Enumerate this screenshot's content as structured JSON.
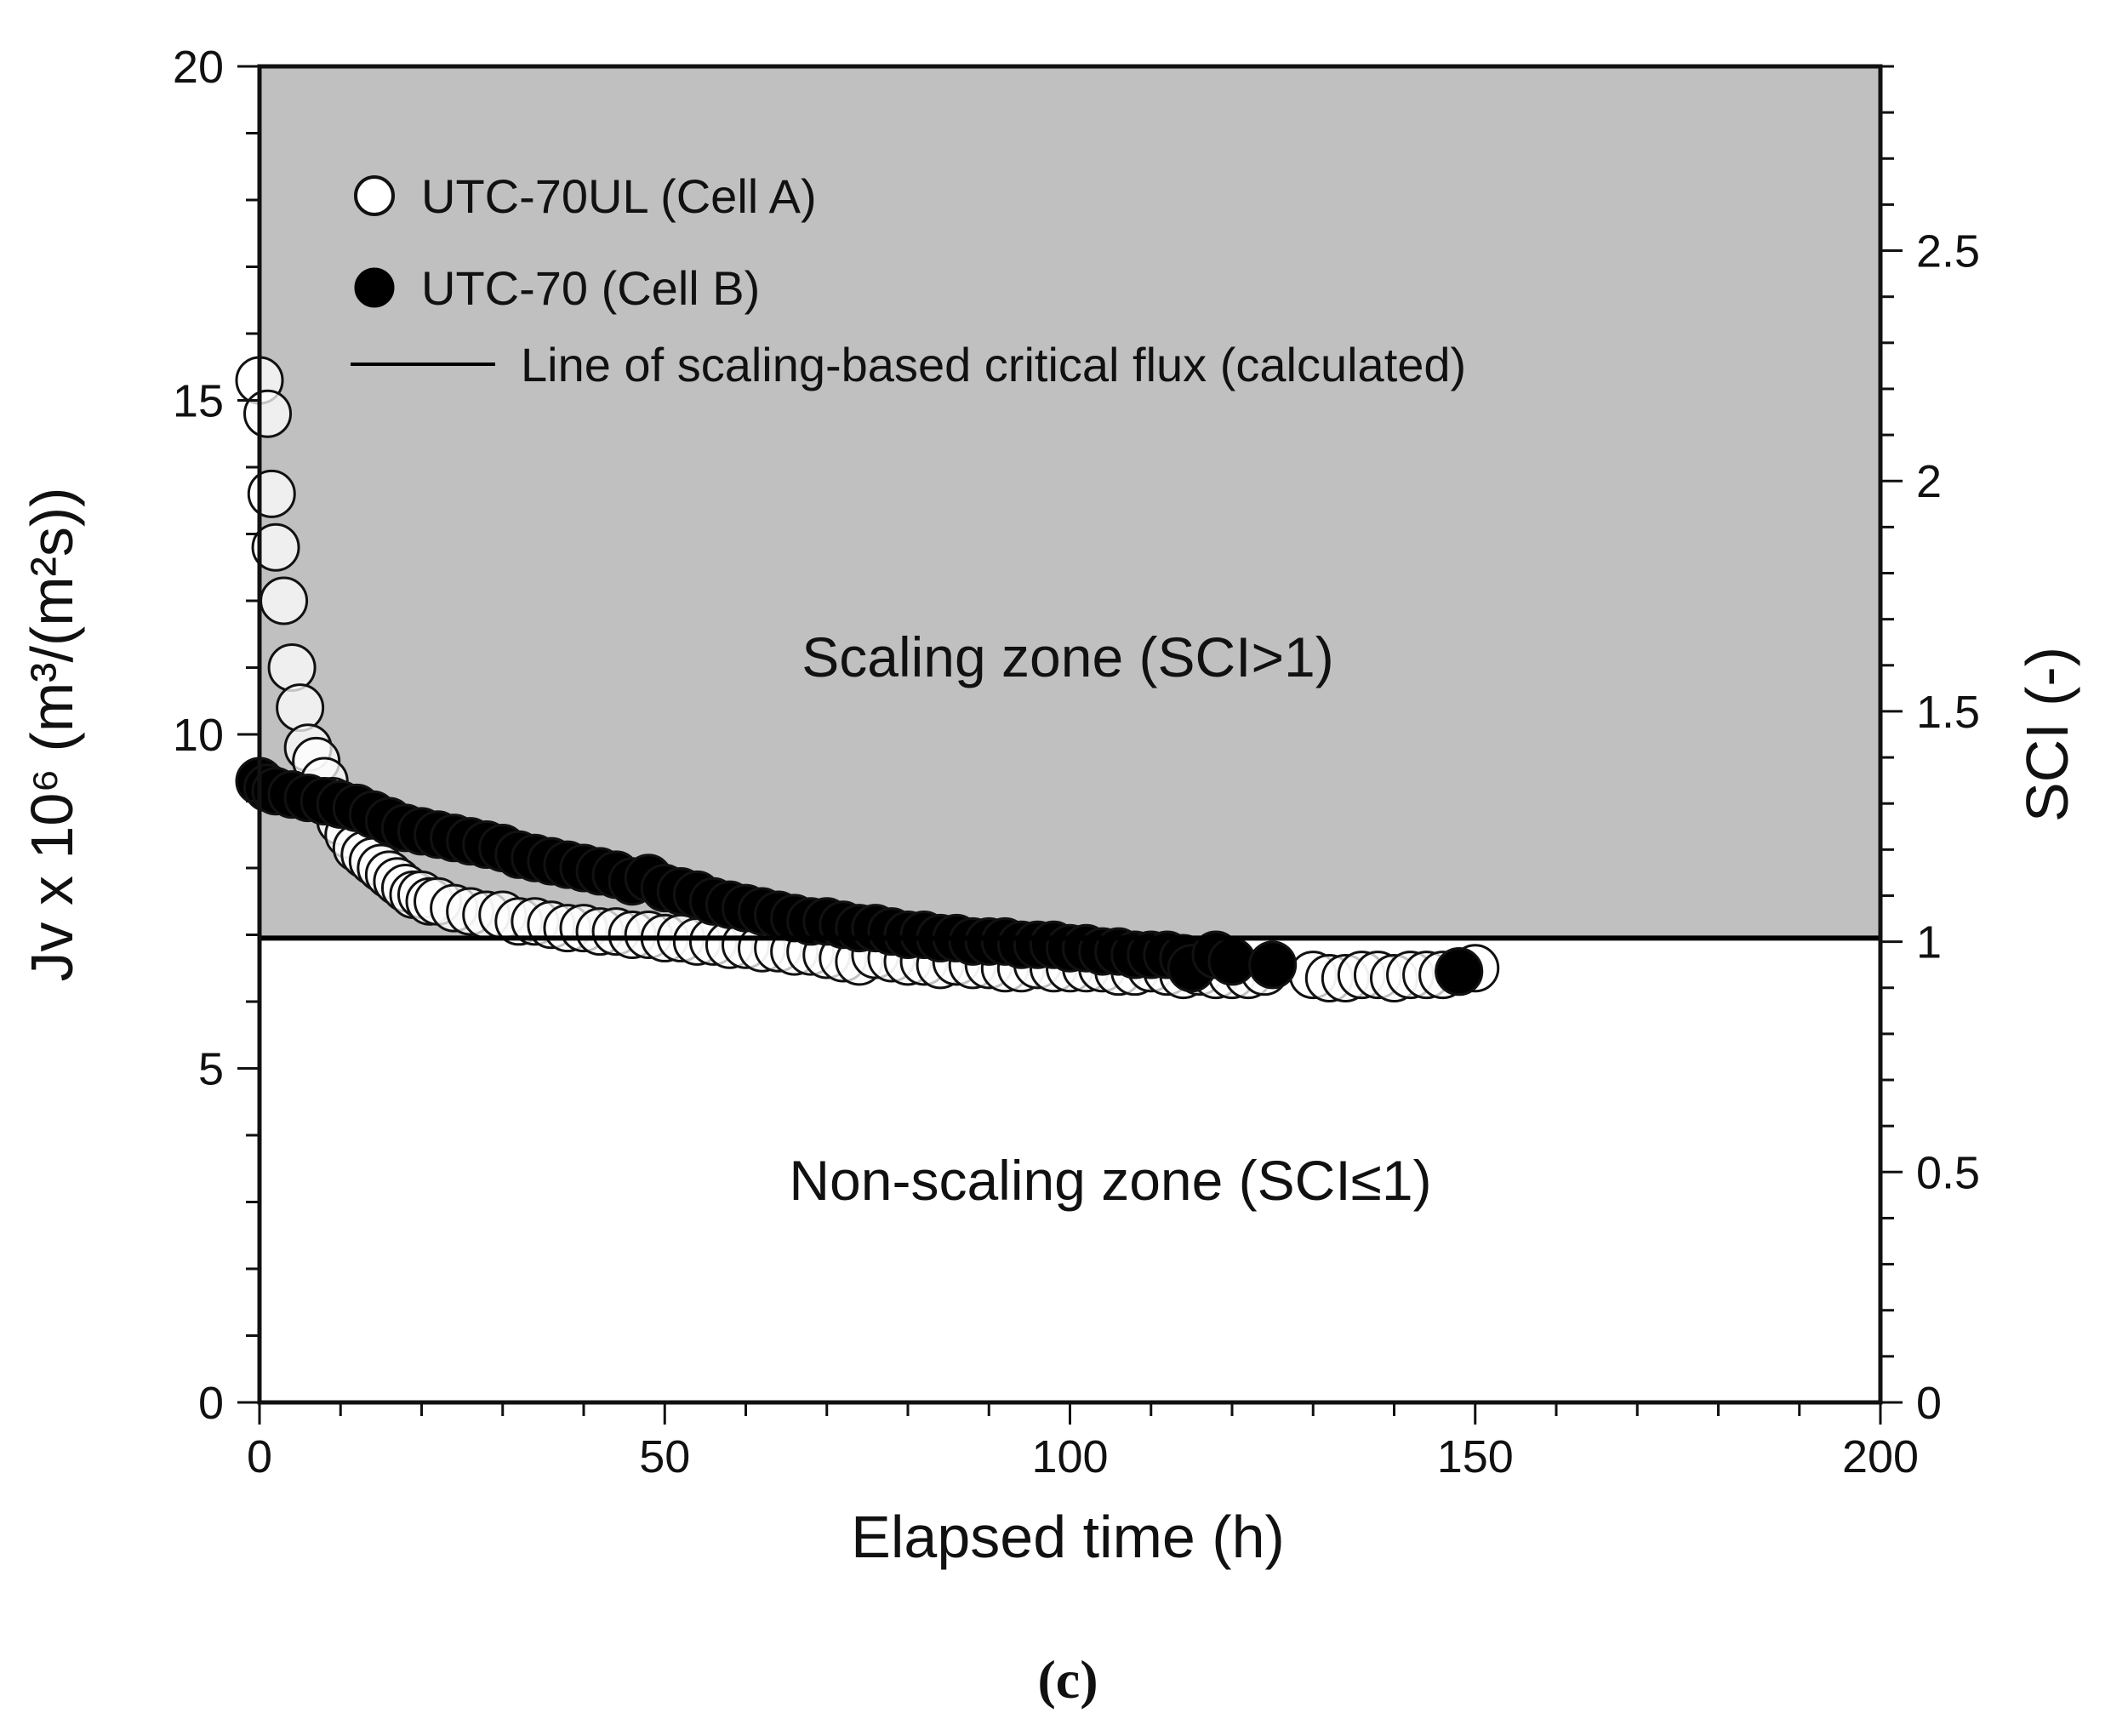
{
  "chart_data": {
    "type": "scatter",
    "panel_label": "(c)",
    "xlabel": "Elapsed time (h)",
    "ylabel": "Jv x 10⁶ (m³/(m²s))",
    "ylabel_right": "SCI (-)",
    "xlim": [
      0,
      200
    ],
    "ylim": [
      0,
      20
    ],
    "ylim_right": [
      0,
      2.9
    ],
    "x_ticks": [
      0,
      50,
      100,
      150,
      200
    ],
    "x_tick_labels": [
      "0",
      "50",
      "100",
      "150",
      "200"
    ],
    "y_ticks": [
      0,
      5,
      10,
      15,
      20
    ],
    "y_tick_labels": [
      "0",
      "5",
      "10",
      "15",
      "20"
    ],
    "y_right_ticks": [
      0,
      0.5,
      1,
      1.5,
      2,
      2.5
    ],
    "y_right_tick_labels": [
      "0",
      "0.5",
      "1",
      "1.5",
      "2",
      "2.5"
    ],
    "legend_position": "top-left",
    "critical_flux": 6.95,
    "zones": {
      "scaling": "Scaling zone (SCI>1)",
      "non_scaling": "Non-scaling zone (SCI≤1)"
    },
    "line_legend": "Line of scaling-based critical flux (calculated)",
    "colors": {
      "scaling_zone": "#c0c0c0",
      "open_marker_fill": "#ffffff",
      "filled_marker": "#000000",
      "line": "#000000"
    },
    "series": [
      {
        "name": "UTC-70UL (Cell A)",
        "marker": "open-circle",
        "points": [
          [
            0,
            15.3
          ],
          [
            1,
            14.8
          ],
          [
            1.5,
            13.6
          ],
          [
            2,
            12.8
          ],
          [
            3,
            12.0
          ],
          [
            4,
            11.0
          ],
          [
            5,
            10.4
          ],
          [
            6,
            9.8
          ],
          [
            7,
            9.6
          ],
          [
            8,
            9.3
          ],
          [
            9,
            9.0
          ],
          [
            10,
            8.7
          ],
          [
            11,
            8.5
          ],
          [
            12,
            8.3
          ],
          [
            13,
            8.2
          ],
          [
            14,
            8.1
          ],
          [
            15,
            8.0
          ],
          [
            16,
            7.9
          ],
          [
            17,
            7.8
          ],
          [
            18,
            7.7
          ],
          [
            19,
            7.6
          ],
          [
            20,
            7.6
          ],
          [
            21,
            7.5
          ],
          [
            22,
            7.5
          ],
          [
            24,
            7.4
          ],
          [
            26,
            7.35
          ],
          [
            28,
            7.3
          ],
          [
            30,
            7.3
          ],
          [
            32,
            7.2
          ],
          [
            34,
            7.2
          ],
          [
            36,
            7.15
          ],
          [
            38,
            7.1
          ],
          [
            40,
            7.1
          ],
          [
            42,
            7.05
          ],
          [
            44,
            7.05
          ],
          [
            46,
            7.0
          ],
          [
            48,
            7.0
          ],
          [
            50,
            6.95
          ],
          [
            52,
            6.95
          ],
          [
            54,
            6.9
          ],
          [
            56,
            6.9
          ],
          [
            58,
            6.85
          ],
          [
            60,
            6.85
          ],
          [
            62,
            6.8
          ],
          [
            64,
            6.8
          ],
          [
            66,
            6.75
          ],
          [
            68,
            6.75
          ],
          [
            70,
            6.7
          ],
          [
            72,
            6.65
          ],
          [
            74,
            6.6
          ],
          [
            76,
            6.7
          ],
          [
            78,
            6.65
          ],
          [
            80,
            6.6
          ],
          [
            82,
            6.6
          ],
          [
            84,
            6.55
          ],
          [
            86,
            6.6
          ],
          [
            88,
            6.55
          ],
          [
            90,
            6.55
          ],
          [
            92,
            6.5
          ],
          [
            94,
            6.5
          ],
          [
            96,
            6.55
          ],
          [
            98,
            6.5
          ],
          [
            100,
            6.5
          ],
          [
            102,
            6.5
          ],
          [
            104,
            6.5
          ],
          [
            106,
            6.45
          ],
          [
            108,
            6.45
          ],
          [
            110,
            6.5
          ],
          [
            112,
            6.45
          ],
          [
            114,
            6.4
          ],
          [
            116,
            6.45
          ],
          [
            118,
            6.4
          ],
          [
            120,
            6.4
          ],
          [
            122,
            6.4
          ],
          [
            124,
            6.45
          ],
          [
            130,
            6.4
          ],
          [
            132,
            6.35
          ],
          [
            134,
            6.35
          ],
          [
            136,
            6.4
          ],
          [
            138,
            6.4
          ],
          [
            140,
            6.35
          ],
          [
            142,
            6.4
          ],
          [
            144,
            6.4
          ],
          [
            146,
            6.4
          ],
          [
            148,
            6.45
          ],
          [
            150,
            6.5
          ]
        ]
      },
      {
        "name": "UTC-70 (Cell B)",
        "marker": "filled-circle",
        "points": [
          [
            0,
            9.3
          ],
          [
            1,
            9.2
          ],
          [
            2,
            9.15
          ],
          [
            4,
            9.1
          ],
          [
            6,
            9.05
          ],
          [
            8,
            9.0
          ],
          [
            10,
            8.95
          ],
          [
            12,
            8.9
          ],
          [
            14,
            8.8
          ],
          [
            16,
            8.7
          ],
          [
            18,
            8.6
          ],
          [
            20,
            8.55
          ],
          [
            22,
            8.5
          ],
          [
            24,
            8.45
          ],
          [
            26,
            8.4
          ],
          [
            28,
            8.35
          ],
          [
            30,
            8.3
          ],
          [
            32,
            8.2
          ],
          [
            34,
            8.15
          ],
          [
            36,
            8.1
          ],
          [
            38,
            8.05
          ],
          [
            40,
            8.0
          ],
          [
            42,
            7.95
          ],
          [
            44,
            7.9
          ],
          [
            46,
            7.8
          ],
          [
            48,
            7.85
          ],
          [
            50,
            7.7
          ],
          [
            52,
            7.65
          ],
          [
            54,
            7.6
          ],
          [
            56,
            7.5
          ],
          [
            58,
            7.45
          ],
          [
            60,
            7.4
          ],
          [
            62,
            7.35
          ],
          [
            64,
            7.3
          ],
          [
            66,
            7.25
          ],
          [
            68,
            7.2
          ],
          [
            70,
            7.2
          ],
          [
            72,
            7.15
          ],
          [
            74,
            7.1
          ],
          [
            76,
            7.1
          ],
          [
            78,
            7.05
          ],
          [
            80,
            7.0
          ],
          [
            82,
            7.0
          ],
          [
            84,
            6.95
          ],
          [
            86,
            6.95
          ],
          [
            88,
            6.9
          ],
          [
            90,
            6.9
          ],
          [
            92,
            6.9
          ],
          [
            94,
            6.85
          ],
          [
            96,
            6.85
          ],
          [
            98,
            6.85
          ],
          [
            100,
            6.8
          ],
          [
            102,
            6.8
          ],
          [
            104,
            6.75
          ],
          [
            106,
            6.75
          ],
          [
            108,
            6.7
          ],
          [
            110,
            6.7
          ],
          [
            112,
            6.7
          ],
          [
            114,
            6.65
          ],
          [
            115,
            6.5
          ],
          [
            118,
            6.7
          ],
          [
            120,
            6.6
          ],
          [
            125,
            6.55
          ],
          [
            148,
            6.45
          ]
        ]
      }
    ]
  }
}
